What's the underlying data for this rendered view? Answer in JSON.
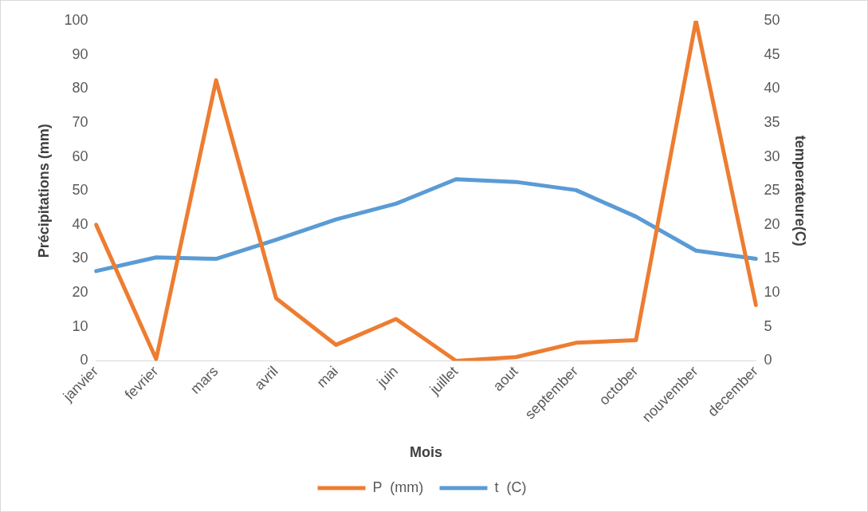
{
  "chart_data": {
    "type": "line",
    "xlabel": "Mois",
    "ylabel": "Précipitations (mm)",
    "y2label": "temperateure(C)",
    "categories": [
      "janvier",
      "fevrier",
      "mars",
      "avril",
      "mai",
      "juin",
      "juillet",
      "aout",
      "september",
      "october",
      "nouvember",
      "december"
    ],
    "series": [
      {
        "name": "P  (mm)",
        "color": "#ed7d31",
        "values": [
          40,
          0.5,
          82.5,
          18.4,
          4.7,
          12.3,
          0,
          1.1,
          5.3,
          6.1,
          100,
          16.4
        ]
      },
      {
        "name": "t  (C)",
        "color": "#5b9bd5",
        "axis": "y2",
        "values": [
          13.2,
          15.2,
          15.0,
          17.8,
          20.8,
          23.1,
          26.7,
          26.3,
          25.1,
          21.2,
          16.2,
          15.0
        ]
      }
    ],
    "ylim": [
      0,
      100
    ],
    "yticks": [
      0,
      10,
      20,
      30,
      40,
      50,
      60,
      70,
      80,
      90,
      100
    ],
    "y2lim": [
      0,
      50
    ],
    "y2ticks": [
      0,
      5,
      10,
      15,
      20,
      25,
      30,
      35,
      40,
      45,
      50
    ],
    "grid": false,
    "legend": "bottom",
    "marker": "none",
    "line_style": "solid"
  }
}
